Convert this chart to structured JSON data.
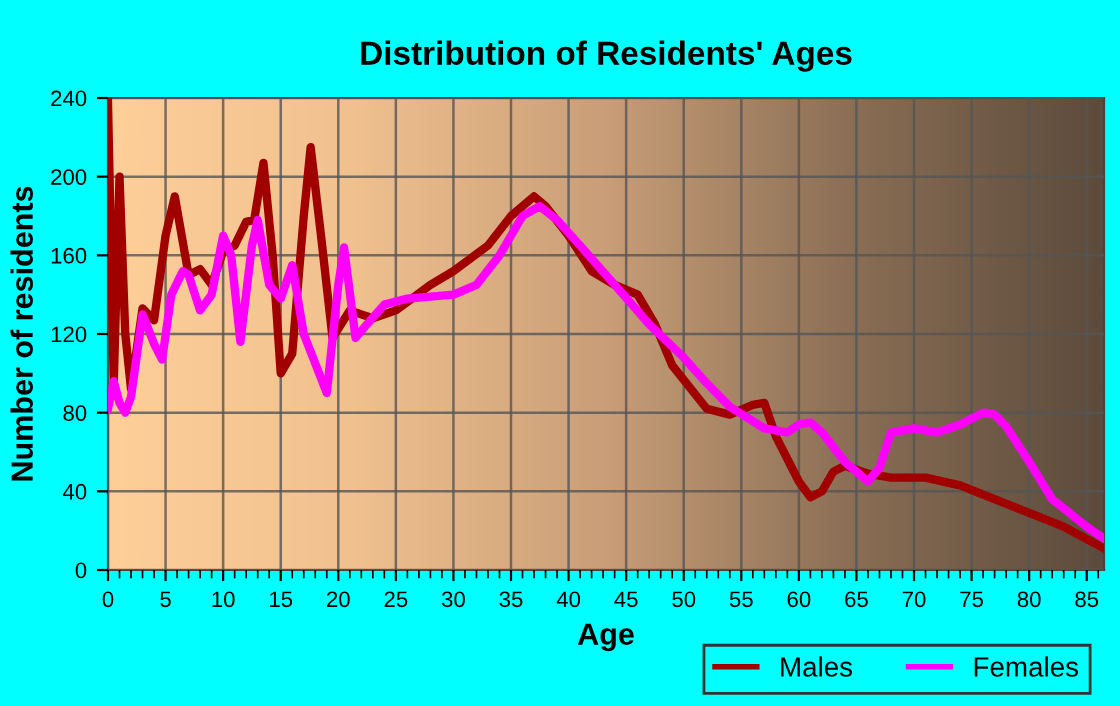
{
  "chart_data": {
    "type": "line",
    "title": "Distribution of Residents' Ages",
    "xlabel": "Age",
    "ylabel": "Number of residents",
    "xlim": [
      0,
      86.5
    ],
    "xticks": [
      0,
      5,
      10,
      15,
      20,
      25,
      30,
      35,
      40,
      45,
      50,
      55,
      60,
      65,
      70,
      75,
      80,
      85
    ],
    "ylim": [
      0,
      240
    ],
    "yticks": [
      0,
      40,
      80,
      120,
      160,
      200,
      240
    ],
    "grid": true,
    "legend": "bottom right",
    "marker": "none",
    "line_style": "solid",
    "series": [
      {
        "name": "Males",
        "color": "#a00000",
        "x": [
          0,
          0.5,
          1,
          1.5,
          2,
          3,
          4,
          5,
          5.8,
          7,
          8,
          9,
          10,
          11,
          12,
          12.7,
          13.5,
          14.3,
          15,
          16,
          17,
          17.6,
          18.5,
          19.5,
          21,
          22,
          23,
          25,
          28,
          30,
          33,
          35,
          37,
          38,
          40,
          42,
          44,
          46,
          47.5,
          49,
          52,
          54,
          56,
          57,
          58,
          60,
          61,
          62,
          63,
          64,
          66,
          68,
          71,
          74,
          77,
          80,
          83,
          86.5
        ],
        "values": [
          238,
          95,
          200,
          120,
          92,
          133,
          127,
          170,
          190,
          150,
          153,
          145,
          162,
          165,
          177,
          178,
          207,
          160,
          100,
          110,
          180,
          215,
          170,
          118,
          132,
          130,
          128,
          132,
          145,
          152,
          165,
          180,
          190,
          185,
          170,
          152,
          145,
          140,
          125,
          104,
          82,
          79,
          84,
          85,
          68,
          45,
          37,
          40,
          50,
          53,
          49,
          47,
          47,
          43,
          36,
          29,
          22,
          11
        ]
      },
      {
        "name": "Females",
        "color": "#ff00ff",
        "x": [
          0,
          0.5,
          1,
          1.5,
          2,
          3,
          4,
          4.7,
          5.5,
          6.5,
          7,
          8,
          9,
          10,
          10.7,
          11.5,
          12.5,
          13,
          14,
          15,
          16,
          17,
          18,
          19,
          20,
          20.5,
          21.5,
          22.5,
          24,
          26,
          30,
          32,
          34,
          36,
          37.5,
          39,
          41,
          44,
          47,
          50,
          52,
          54,
          57,
          59,
          60,
          61,
          62,
          64,
          66,
          67,
          68,
          70,
          72,
          74,
          76,
          77,
          78,
          80,
          82,
          85,
          86.5
        ],
        "values": [
          82,
          96,
          85,
          80,
          88,
          130,
          115,
          107,
          140,
          152,
          150,
          132,
          140,
          170,
          160,
          116,
          165,
          178,
          145,
          138,
          155,
          120,
          105,
          90,
          145,
          164,
          118,
          125,
          135,
          138,
          140,
          145,
          160,
          180,
          185,
          178,
          165,
          145,
          125,
          108,
          95,
          83,
          72,
          70,
          74,
          75,
          70,
          55,
          45,
          52,
          70,
          72,
          70,
          74,
          80,
          79,
          73,
          55,
          36,
          22,
          16
        ]
      }
    ]
  }
}
